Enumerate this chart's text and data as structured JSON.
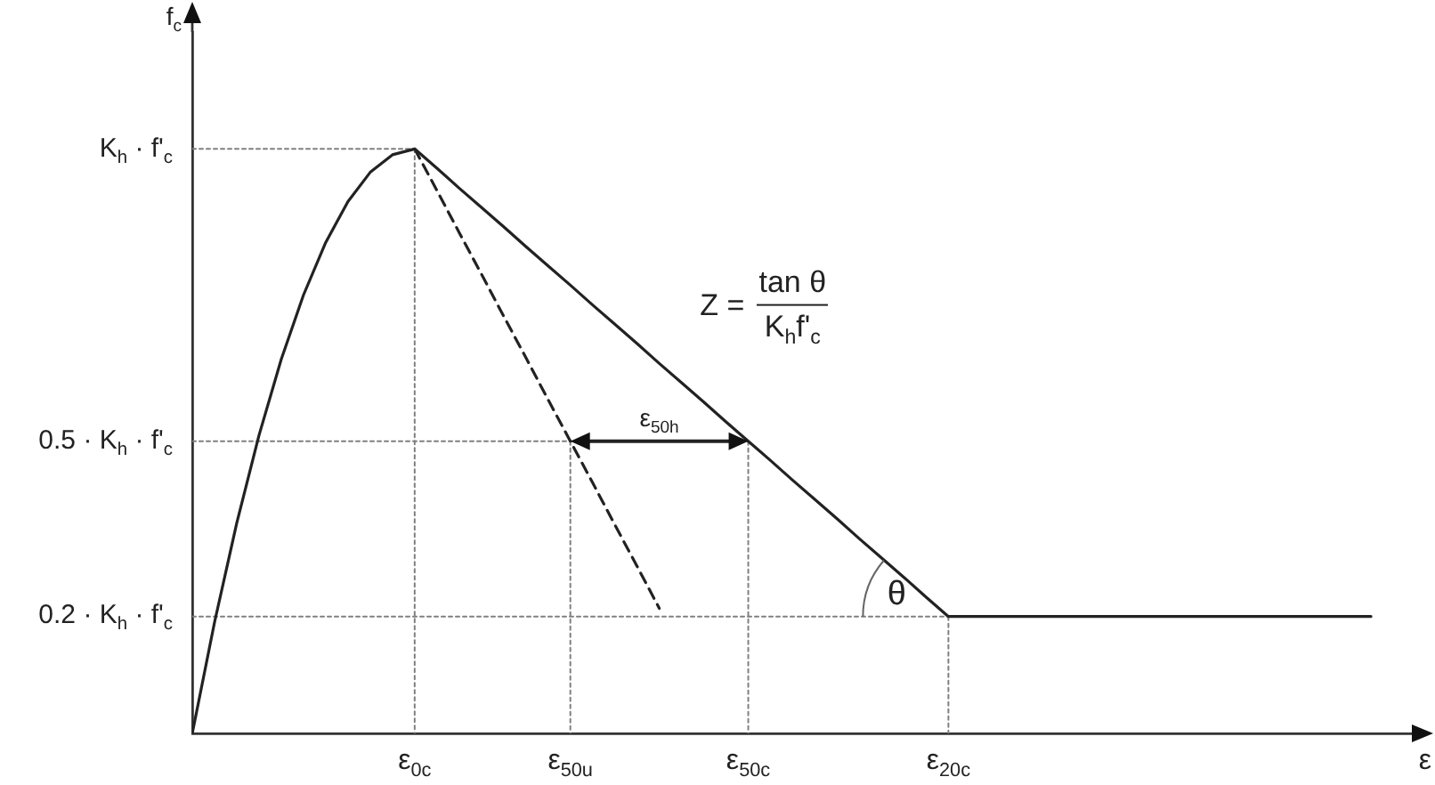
{
  "chart_data": {
    "type": "line",
    "xlabel": "ε",
    "ylabel": "f$_{c}$",
    "ylim": [
      0,
      1.2
    ],
    "categories": [
      null,
      null,
      null,
      null,
      null,
      null,
      null,
      null,
      null,
      null,
      "ε$_{0c}$",
      null,
      null,
      null,
      null,
      null,
      null,
      "ε$_{50u}$",
      null,
      null,
      null,
      null,
      null,
      null,
      null,
      "ε$_{50c}$",
      null,
      null,
      null,
      null,
      null,
      null,
      null,
      null,
      "ε$_{20c}$",
      null,
      null,
      null,
      null,
      null,
      null,
      null,
      null,
      null,
      null,
      null,
      null,
      null,
      null,
      null,
      null,
      null,
      null,
      null,
      null,
      null
    ],
    "yticks": [
      {
        "value": 0.2,
        "label": "0.2 · K$_{h}$ · f'$_{c}$"
      },
      {
        "value": 0.5,
        "label": "0.5 · K$_{h}$ · f'$_{c}$"
      },
      {
        "value": 1,
        "label": "K$_{h}$ · f'$_{c}$"
      }
    ],
    "marker": "none",
    "series": [
      {
        "color": "#222222",
        "line_style": "solid",
        "values": [
          0,
          0.19,
          0.36,
          0.51,
          0.64,
          0.75,
          0.84,
          0.91,
          0.96,
          0.99,
          1,
          0.967,
          0.933,
          0.9,
          0.867,
          0.833,
          0.8,
          0.767,
          0.733,
          0.7,
          0.667,
          0.633,
          0.6,
          0.567,
          0.533,
          0.5,
          0.467,
          0.433,
          0.4,
          0.367,
          0.333,
          0.3,
          0.267,
          0.233,
          0.2,
          0.2,
          0.2,
          0.2,
          0.2,
          0.2,
          0.2,
          0.2,
          0.2,
          0.2,
          0.2,
          0.2,
          0.2,
          0.2,
          0.2,
          0.2,
          0.2,
          0.2,
          0.2,
          0.2,
          null,
          null
        ]
      },
      {
        "color": "#222222",
        "line_style": "dashed",
        "values": [
          null,
          null,
          null,
          null,
          null,
          null,
          null,
          null,
          null,
          null,
          1,
          0.929,
          0.857,
          0.786,
          0.714,
          0.643,
          0.571,
          0.5,
          0.429,
          0.357,
          0.286,
          0.214,
          null,
          null,
          null,
          null,
          null,
          null,
          null,
          null,
          null,
          null,
          null,
          null,
          null,
          null,
          null,
          null,
          null,
          null,
          null,
          null,
          null,
          null,
          null,
          null,
          null,
          null,
          null,
          null,
          null,
          null,
          null,
          null,
          null,
          null
        ]
      },
      {
        "color": "#808080",
        "line_style": "dotted",
        "values": [
          1,
          1,
          1,
          1,
          1,
          1,
          1,
          1,
          1,
          1,
          1,
          null,
          null,
          null,
          null,
          null,
          null,
          null,
          null,
          null,
          null,
          null,
          null,
          null,
          null,
          null,
          null,
          null,
          null,
          null,
          null,
          null,
          null,
          null,
          null,
          null,
          null,
          null,
          null,
          null,
          null,
          null,
          null,
          null,
          null,
          null,
          null,
          null,
          null,
          null,
          null,
          null,
          null,
          null,
          null,
          null
        ]
      },
      {
        "color": "#808080",
        "line_style": "dotted",
        "values": [
          0.5,
          0.5,
          0.5,
          0.5,
          0.5,
          0.5,
          0.5,
          0.5,
          0.5,
          0.5,
          0.5,
          0.5,
          0.5,
          0.5,
          0.5,
          0.5,
          0.5,
          0.5,
          0.5,
          0.5,
          0.5,
          0.5,
          0.5,
          0.5,
          0.5,
          0.5,
          null,
          null,
          null,
          null,
          null,
          null,
          null,
          null,
          null,
          null,
          null,
          null,
          null,
          null,
          null,
          null,
          null,
          null,
          null,
          null,
          null,
          null,
          null,
          null,
          null,
          null,
          null,
          null,
          null,
          null
        ]
      },
      {
        "color": "#808080",
        "line_style": "dotted",
        "values": [
          0.2,
          0.2,
          0.2,
          0.2,
          0.2,
          0.2,
          0.2,
          0.2,
          0.2,
          0.2,
          0.2,
          0.2,
          0.2,
          0.2,
          0.2,
          0.2,
          0.2,
          0.2,
          0.2,
          0.2,
          0.2,
          0.2,
          0.2,
          0.2,
          0.2,
          0.2,
          0.2,
          0.2,
          0.2,
          0.2,
          0.2,
          0.2,
          0.2,
          0.2,
          0.2,
          null,
          null,
          null,
          null,
          null,
          null,
          null,
          null,
          null,
          null,
          null,
          null,
          null,
          null,
          null,
          null,
          null,
          null,
          null,
          null,
          null
        ]
      },
      {
        "color": "#808080",
        "line_style": "dotted",
        "x": [
          "ε$_{0c}$",
          "ε$_{0c}$"
        ],
        "values": [
          1,
          0
        ]
      },
      {
        "color": "#808080",
        "line_style": "dotted",
        "x": [
          "ε$_{50u}$",
          "ε$_{50u}$"
        ],
        "values": [
          0.5,
          0
        ]
      },
      {
        "color": "#808080",
        "line_style": "dotted",
        "x": [
          "ε$_{50c}$",
          "ε$_{50c}$"
        ],
        "values": [
          0.5,
          0
        ]
      },
      {
        "color": "#808080",
        "line_style": "dotted",
        "x": [
          "ε$_{20c}$",
          "ε$_{20c}$"
        ],
        "values": [
          0.2,
          0
        ]
      }
    ],
    "annotations": [
      {
        "text": "ε$_{50h}$",
        "x": "ε$_{50c}$",
        "y": 0.5
      },
      {
        "text": "θ",
        "x": "ε$_{20c}$",
        "y": 0.2
      },
      "Z =",
      "tan θ",
      "K$_{h}$f'$_{c}$"
    ]
  }
}
